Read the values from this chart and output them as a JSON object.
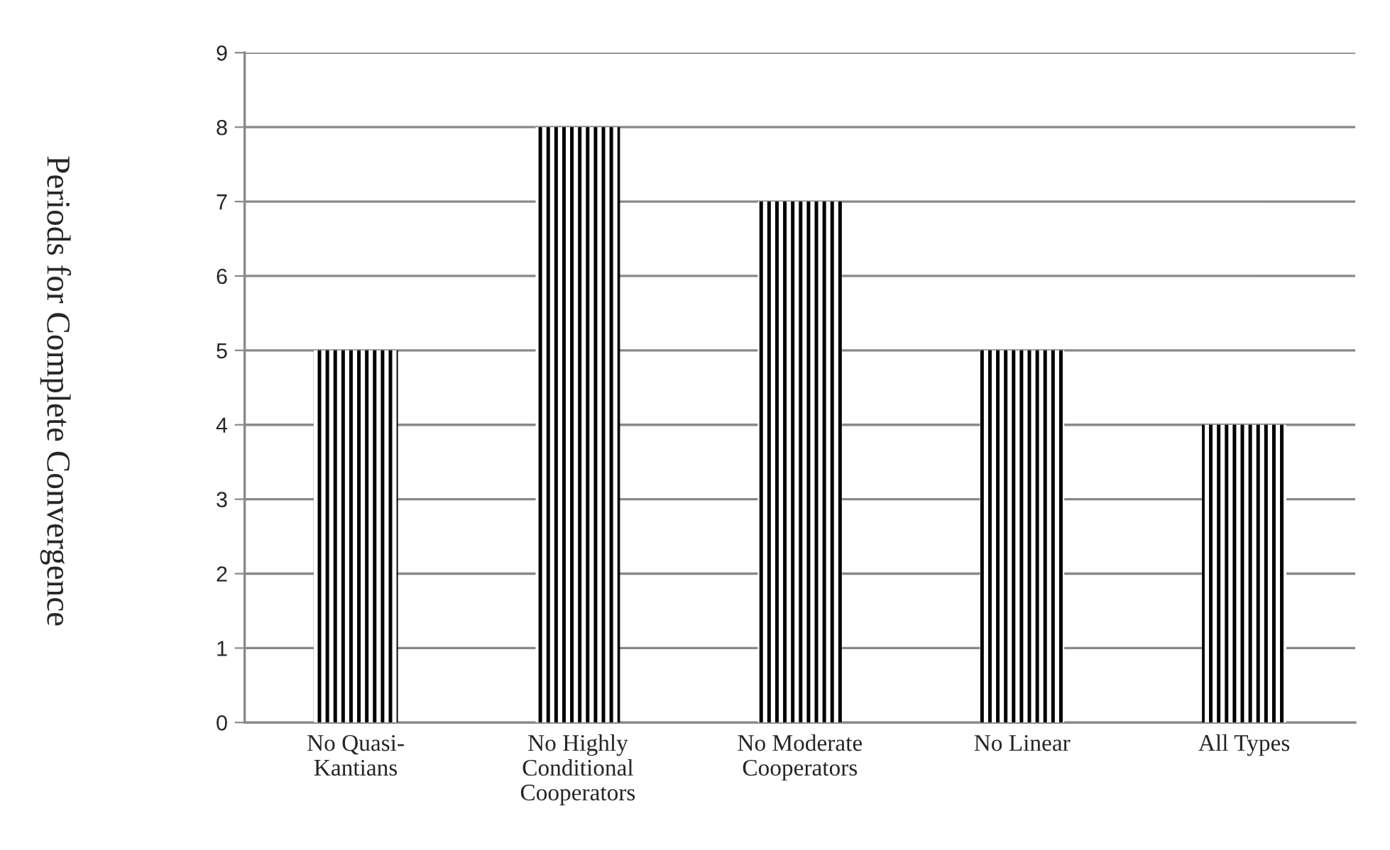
{
  "chart_data": {
    "type": "bar",
    "ylabel": "Periods for Complete Convergence",
    "categories": [
      "No Quasi-\nKantians",
      "No Highly\nConditional\nCooperators",
      "No Moderate\nCooperators",
      "No Linear",
      "All Types"
    ],
    "values": [
      5,
      8,
      7,
      5,
      4
    ],
    "color": "#000000",
    "ylim": [
      0,
      9
    ],
    "yticks": [
      0,
      1,
      2,
      3,
      4,
      5,
      6,
      7,
      8,
      9
    ],
    "grid": "y",
    "legend": false
  }
}
